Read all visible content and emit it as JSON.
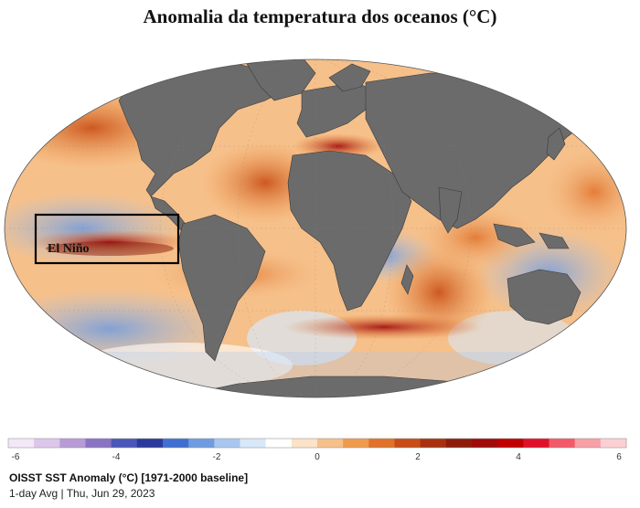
{
  "title": "Anomalia da temperatura dos oceanos (°C)",
  "annotation": {
    "label": "El Niño"
  },
  "colorbar": {
    "ticks": [
      "-6",
      "-4",
      "-2",
      "0",
      "2",
      "4",
      "6"
    ],
    "range": [
      -6,
      6
    ],
    "colors": [
      "#f3e8f7",
      "#dcc6ea",
      "#b79bd6",
      "#8a73c4",
      "#4a56b8",
      "#2a3a9c",
      "#3f6fd0",
      "#6f9be0",
      "#a8c6ee",
      "#d8e8f8",
      "#ffffff",
      "#fbe3c8",
      "#f6c08a",
      "#ef9a4c",
      "#e0722a",
      "#c84d16",
      "#a8300e",
      "#8c1c0a",
      "#a00a0a",
      "#c00000",
      "#e0102a",
      "#f25a6a",
      "#f7a0a6",
      "#fbd0d4"
    ]
  },
  "caption": {
    "main": "OISST SST Anomaly (°C) [1971-2000 baseline]",
    "sub": "1-day Avg | Thu, Jun 29, 2023"
  }
}
